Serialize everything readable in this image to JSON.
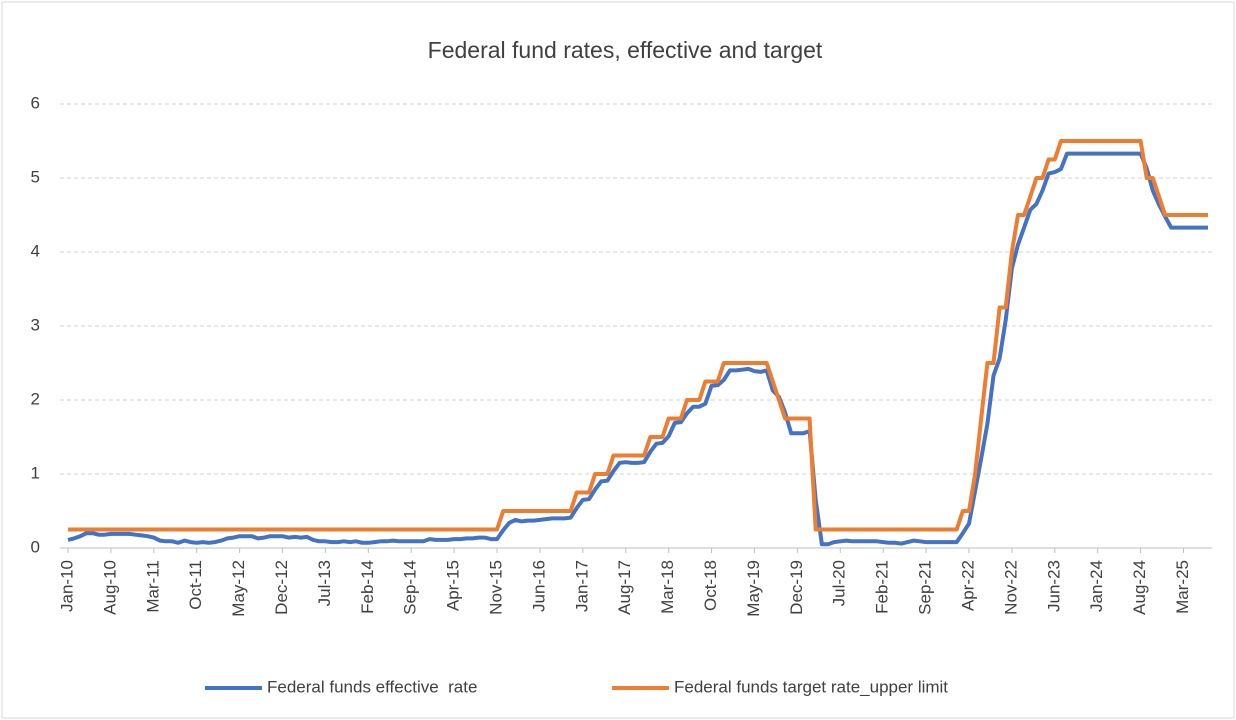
{
  "chart_data": {
    "type": "line",
    "title": "Federal fund rates, effective and target",
    "categories": [
      "Jan-10",
      null,
      null,
      null,
      null,
      null,
      null,
      "Aug-10",
      null,
      null,
      null,
      null,
      null,
      null,
      "Mar-11",
      null,
      null,
      null,
      null,
      null,
      null,
      "Oct-11",
      null,
      null,
      null,
      null,
      null,
      null,
      "May-12",
      null,
      null,
      null,
      null,
      null,
      null,
      "Dec-12",
      null,
      null,
      null,
      null,
      null,
      null,
      "Jul-13",
      null,
      null,
      null,
      null,
      null,
      null,
      "Feb-14",
      null,
      null,
      null,
      null,
      null,
      null,
      "Sep-14",
      null,
      null,
      null,
      null,
      null,
      null,
      "Apr-15",
      null,
      null,
      null,
      null,
      null,
      null,
      "Nov-15",
      null,
      null,
      null,
      null,
      null,
      null,
      "Jun-16",
      null,
      null,
      null,
      null,
      null,
      null,
      "Jan-17",
      null,
      null,
      null,
      null,
      null,
      null,
      "Aug-17",
      null,
      null,
      null,
      null,
      null,
      null,
      "Mar-18",
      null,
      null,
      null,
      null,
      null,
      null,
      "Oct-18",
      null,
      null,
      null,
      null,
      null,
      null,
      "May-19",
      null,
      null,
      null,
      null,
      null,
      null,
      "Dec-19",
      null,
      null,
      null,
      null,
      null,
      null,
      "Jul-20",
      null,
      null,
      null,
      null,
      null,
      null,
      "Feb-21",
      null,
      null,
      null,
      null,
      null,
      null,
      "Sep-21",
      null,
      null,
      null,
      null,
      null,
      null,
      "Apr-22",
      null,
      null,
      null,
      null,
      null,
      null,
      "Nov-22",
      null,
      null,
      null,
      null,
      null,
      null,
      "Jun-23",
      null,
      null,
      null,
      null,
      null,
      null,
      "Jan-24",
      null,
      null,
      null,
      null,
      null,
      null,
      "Aug-24",
      null,
      null,
      null,
      null,
      null,
      null,
      "Mar-25",
      null,
      null,
      null,
      null
    ],
    "series": [
      {
        "name": "Federal funds effective  rate",
        "color": "#4472c4",
        "values": [
          0.11,
          0.13,
          0.16,
          0.2,
          0.2,
          0.18,
          0.18,
          0.19,
          0.19,
          0.19,
          0.19,
          0.18,
          0.17,
          0.16,
          0.14,
          0.1,
          0.09,
          0.09,
          0.07,
          0.1,
          0.08,
          0.07,
          0.08,
          0.07,
          0.08,
          0.1,
          0.13,
          0.14,
          0.16,
          0.16,
          0.16,
          0.13,
          0.14,
          0.16,
          0.16,
          0.16,
          0.14,
          0.15,
          0.14,
          0.15,
          0.11,
          0.09,
          0.09,
          0.08,
          0.08,
          0.09,
          0.08,
          0.09,
          0.07,
          0.07,
          0.08,
          0.09,
          0.09,
          0.1,
          0.09,
          0.09,
          0.09,
          0.09,
          0.09,
          0.12,
          0.11,
          0.11,
          0.11,
          0.12,
          0.12,
          0.13,
          0.13,
          0.14,
          0.14,
          0.12,
          0.12,
          0.24,
          0.34,
          0.38,
          0.36,
          0.37,
          0.37,
          0.38,
          0.39,
          0.4,
          0.4,
          0.4,
          0.41,
          0.54,
          0.65,
          0.66,
          0.79,
          0.9,
          0.91,
          1.04,
          1.15,
          1.16,
          1.15,
          1.15,
          1.16,
          1.3,
          1.41,
          1.42,
          1.51,
          1.69,
          1.7,
          1.82,
          1.91,
          1.91,
          1.95,
          2.19,
          2.2,
          2.27,
          2.4,
          2.4,
          2.41,
          2.42,
          2.39,
          2.38,
          2.4,
          2.13,
          2.04,
          1.83,
          1.55,
          1.55,
          1.55,
          1.58,
          0.65,
          0.05,
          0.05,
          0.08,
          0.09,
          0.1,
          0.09,
          0.09,
          0.09,
          0.09,
          0.09,
          0.08,
          0.07,
          0.07,
          0.06,
          0.08,
          0.1,
          0.09,
          0.08,
          0.08,
          0.08,
          0.08,
          0.08,
          0.08,
          0.2,
          0.33,
          0.77,
          1.21,
          1.68,
          2.33,
          2.56,
          3.08,
          3.78,
          4.1,
          4.33,
          4.57,
          4.65,
          4.83,
          5.06,
          5.08,
          5.12,
          5.33,
          5.33,
          5.33,
          5.33,
          5.33,
          5.33,
          5.33,
          5.33,
          5.33,
          5.33,
          5.33,
          5.33,
          5.33,
          5.13,
          4.83,
          4.64,
          4.48,
          4.33,
          4.33,
          4.33,
          4.33,
          4.33,
          4.33,
          4.33
        ]
      },
      {
        "name": "Federal funds target rate_upper limit",
        "color": "#ed7d31",
        "values": [
          0.25,
          0.25,
          0.25,
          0.25,
          0.25,
          0.25,
          0.25,
          0.25,
          0.25,
          0.25,
          0.25,
          0.25,
          0.25,
          0.25,
          0.25,
          0.25,
          0.25,
          0.25,
          0.25,
          0.25,
          0.25,
          0.25,
          0.25,
          0.25,
          0.25,
          0.25,
          0.25,
          0.25,
          0.25,
          0.25,
          0.25,
          0.25,
          0.25,
          0.25,
          0.25,
          0.25,
          0.25,
          0.25,
          0.25,
          0.25,
          0.25,
          0.25,
          0.25,
          0.25,
          0.25,
          0.25,
          0.25,
          0.25,
          0.25,
          0.25,
          0.25,
          0.25,
          0.25,
          0.25,
          0.25,
          0.25,
          0.25,
          0.25,
          0.25,
          0.25,
          0.25,
          0.25,
          0.25,
          0.25,
          0.25,
          0.25,
          0.25,
          0.25,
          0.25,
          0.25,
          0.25,
          0.5,
          0.5,
          0.5,
          0.5,
          0.5,
          0.5,
          0.5,
          0.5,
          0.5,
          0.5,
          0.5,
          0.5,
          0.75,
          0.75,
          0.75,
          1,
          1,
          1,
          1.25,
          1.25,
          1.25,
          1.25,
          1.25,
          1.25,
          1.5,
          1.5,
          1.5,
          1.75,
          1.75,
          1.75,
          2,
          2,
          2,
          2.25,
          2.25,
          2.25,
          2.5,
          2.5,
          2.5,
          2.5,
          2.5,
          2.5,
          2.5,
          2.5,
          2.25,
          2,
          1.75,
          1.75,
          1.75,
          1.75,
          1.75,
          0.25,
          0.25,
          0.25,
          0.25,
          0.25,
          0.25,
          0.25,
          0.25,
          0.25,
          0.25,
          0.25,
          0.25,
          0.25,
          0.25,
          0.25,
          0.25,
          0.25,
          0.25,
          0.25,
          0.25,
          0.25,
          0.25,
          0.25,
          0.25,
          0.5,
          0.5,
          1,
          1.75,
          2.5,
          2.5,
          3.25,
          3.25,
          4,
          4.5,
          4.5,
          4.75,
          5,
          5,
          5.25,
          5.25,
          5.5,
          5.5,
          5.5,
          5.5,
          5.5,
          5.5,
          5.5,
          5.5,
          5.5,
          5.5,
          5.5,
          5.5,
          5.5,
          5.5,
          5,
          5,
          4.75,
          4.5,
          4.5,
          4.5,
          4.5,
          4.5,
          4.5,
          4.5,
          4.5
        ]
      }
    ],
    "ylim": [
      0,
      6
    ],
    "yticks": [
      0,
      1,
      2,
      3,
      4,
      5,
      6
    ],
    "grid": true,
    "legend": "bottom"
  }
}
